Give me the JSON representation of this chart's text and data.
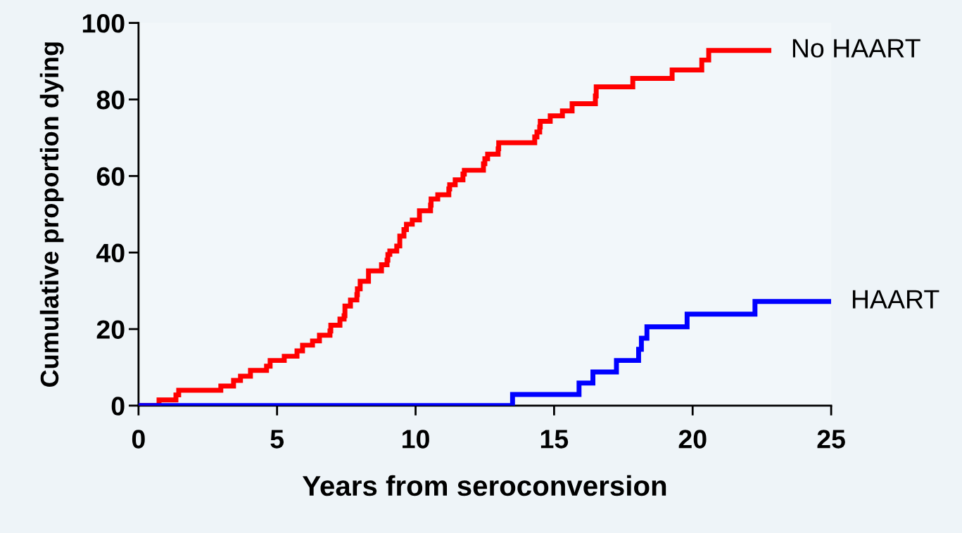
{
  "chart_data": {
    "type": "step",
    "xlabel": "Years from seroconversion",
    "ylabel": "Cumulative proportion dying",
    "xlim": [
      0,
      25
    ],
    "ylim": [
      0,
      100
    ],
    "xticks": [
      0,
      5,
      10,
      15,
      20,
      25
    ],
    "yticks": [
      0,
      20,
      40,
      60,
      80,
      100
    ],
    "grid": false,
    "legend": false,
    "marker": "none",
    "line_style": "solid",
    "series": [
      {
        "name": "No HAART",
        "color": "#ff0000",
        "x": [
          0,
          0.74,
          1.35,
          1.45,
          2.97,
          3.43,
          3.68,
          4.04,
          4.62,
          4.75,
          5.26,
          5.72,
          5.92,
          6.28,
          6.53,
          6.91,
          6.94,
          7.27,
          7.42,
          7.45,
          7.65,
          7.88,
          7.9,
          8.0,
          8.3,
          8.77,
          8.97,
          9.0,
          9.07,
          9.32,
          9.43,
          9.58,
          9.67,
          9.88,
          10.14,
          10.54,
          10.56,
          10.8,
          11.2,
          11.23,
          11.43,
          11.71,
          11.76,
          12.45,
          12.5,
          12.6,
          12.98,
          13.0,
          14.3,
          14.38,
          14.48,
          14.5,
          14.86,
          15.3,
          15.65,
          16.49,
          16.52,
          17.84,
          19.26,
          20.33,
          20.58,
          22.84
        ],
        "values": [
          0,
          1.5,
          2.8,
          4.0,
          5.1,
          6.6,
          7.7,
          9.2,
          10.3,
          11.8,
          12.9,
          14.3,
          15.8,
          16.9,
          18.4,
          19.5,
          21.0,
          22.6,
          23.5,
          26.0,
          27.6,
          29.0,
          30.5,
          32.5,
          35.2,
          36.8,
          38.0,
          39.5,
          40.4,
          41.7,
          44.3,
          46.0,
          47.4,
          48.5,
          50.9,
          52.4,
          54.0,
          55.1,
          56.6,
          57.7,
          59.0,
          60.5,
          61.5,
          63.2,
          64.5,
          65.7,
          67.1,
          68.7,
          70.2,
          71.5,
          72.8,
          74.3,
          75.7,
          77.0,
          78.9,
          80.9,
          83.3,
          85.5,
          87.7,
          90.3,
          92.8,
          92.8
        ]
      },
      {
        "name": "HAART",
        "color": "#0000ff",
        "x": [
          0,
          13.5,
          15.9,
          16.4,
          17.25,
          18.05,
          18.15,
          18.35,
          19.8,
          22.25,
          25
        ],
        "values": [
          0,
          2.9,
          5.9,
          8.8,
          11.8,
          14.7,
          17.6,
          20.6,
          23.9,
          27.2,
          27.2
        ]
      }
    ]
  }
}
